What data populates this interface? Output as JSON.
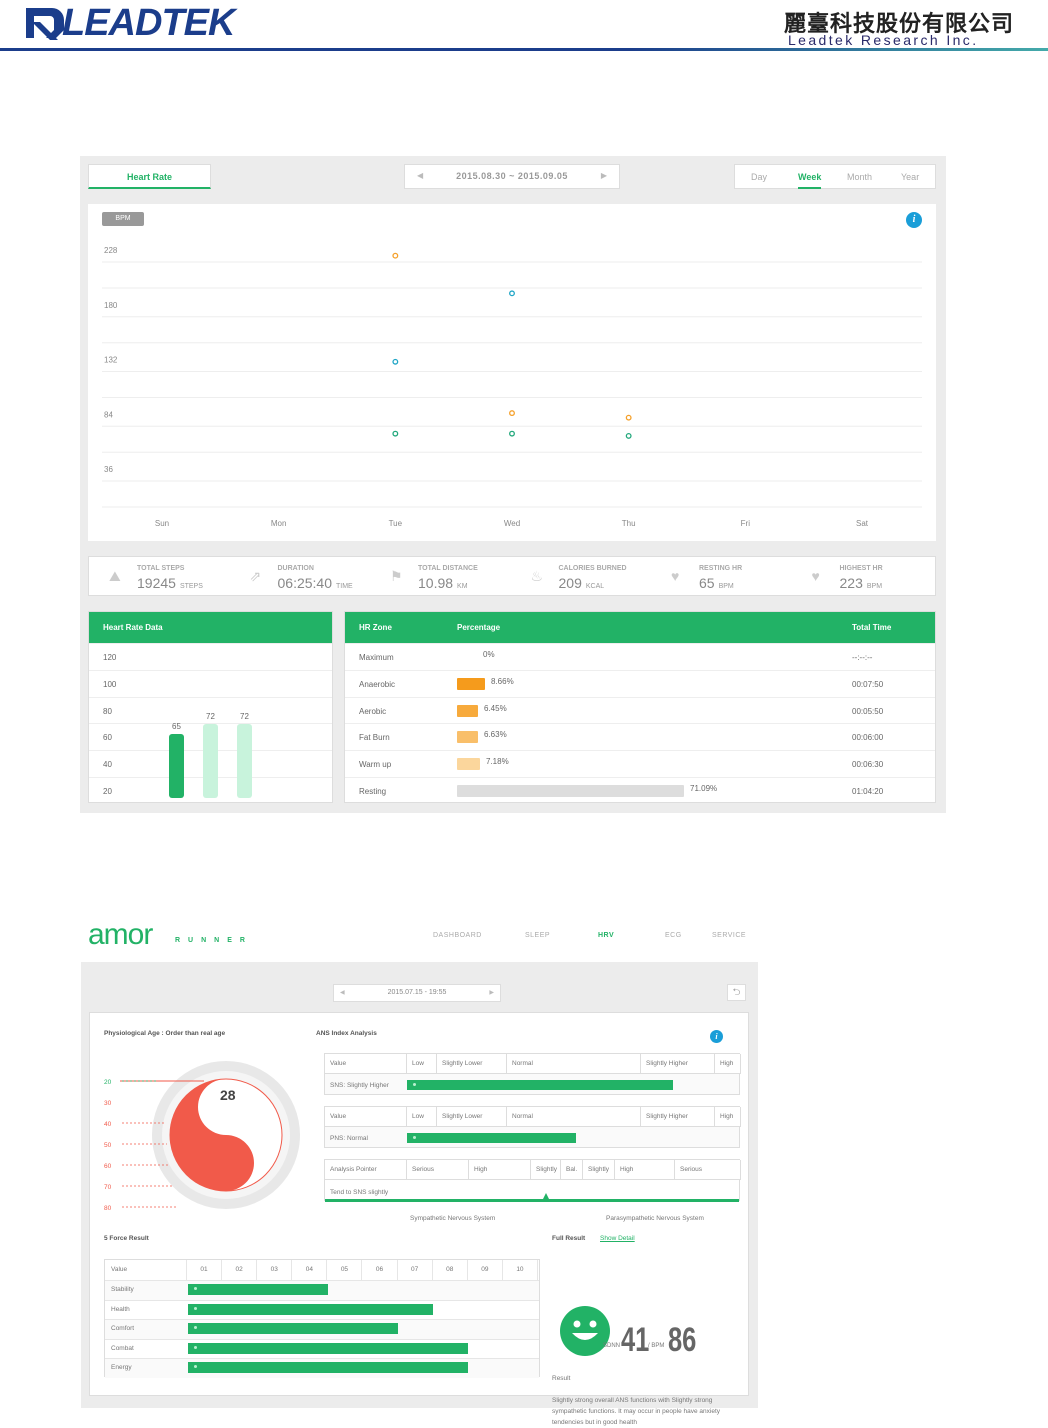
{
  "header": {
    "brand": "LEADTEK",
    "company_cn": "麗臺科技股份有限公司",
    "company_en": "Leadtek Research Inc."
  },
  "screen1": {
    "tab": "Heart Rate",
    "date_range": "2015.08.30 ~ 2015.09.05",
    "periods": [
      "Day",
      "Week",
      "Month",
      "Year"
    ],
    "active_period": "Week",
    "unit_badge": "BPM",
    "chart_data": {
      "type": "scatter",
      "categories": [
        "Sun",
        "Mon",
        "Tue",
        "Wed",
        "Thu",
        "Fri",
        "Sat"
      ],
      "yticks": [
        228,
        180,
        132,
        84,
        36
      ],
      "ylim": [
        36,
        228
      ],
      "series": [
        {
          "color": "#f5a02a",
          "points": [
            {
              "x": "Tue",
              "y": 223
            },
            {
              "x": "Wed",
              "y": 85
            },
            {
              "x": "Thu",
              "y": 81
            }
          ]
        },
        {
          "color": "#1fa5c6",
          "points": [
            {
              "x": "Wed",
              "y": 190
            },
            {
              "x": "Tue",
              "y": 130
            }
          ]
        },
        {
          "color": "#22a87c",
          "points": [
            {
              "x": "Tue",
              "y": 67
            },
            {
              "x": "Wed",
              "y": 67
            },
            {
              "x": "Thu",
              "y": 65
            }
          ]
        }
      ]
    },
    "stats": [
      {
        "label": "TOTAL STEPS",
        "value": "19245",
        "unit": "STEPS",
        "icon": "steps-icon"
      },
      {
        "label": "DURATION",
        "value": "06:25:40",
        "unit": "TIME",
        "icon": "duration-icon"
      },
      {
        "label": "TOTAL DISTANCE",
        "value": "10.98",
        "unit": "KM",
        "icon": "flag-icon"
      },
      {
        "label": "CALORIES BURNED",
        "value": "209",
        "unit": "KCAL",
        "icon": "flame-icon"
      },
      {
        "label": "RESTING HR",
        "value": "65",
        "unit": "BPM",
        "icon": "heart-icon"
      },
      {
        "label": "HIGHEST HR",
        "value": "223",
        "unit": "BPM",
        "icon": "heart-max-icon"
      }
    ],
    "hr_data": {
      "title": "Heart Rate Data",
      "yticks": [
        "120",
        "100",
        "80",
        "60",
        "40",
        "20"
      ],
      "bars": [
        {
          "value": 65,
          "label": "65",
          "color": "#22b266"
        },
        {
          "value": 72,
          "label": "72",
          "color": "#c8f3dc"
        },
        {
          "value": 72,
          "label": "72",
          "color": "#c8f3dc"
        }
      ]
    },
    "zones": {
      "headers": [
        "HR Zone",
        "Percentage",
        "Total Time"
      ],
      "rows": [
        {
          "zone": "Maximum",
          "pct": "0%",
          "fraction": 0,
          "color": "#f59b1c",
          "time": "--:--:--"
        },
        {
          "zone": "Anaerobic",
          "pct": "8.66%",
          "fraction": 0.0866,
          "color": "#f59b1c",
          "time": "00:07:50"
        },
        {
          "zone": "Aerobic",
          "pct": "6.45%",
          "fraction": 0.0645,
          "color": "#f7aa3c",
          "time": "00:05:50"
        },
        {
          "zone": "Fat Burn",
          "pct": "6.63%",
          "fraction": 0.0663,
          "color": "#f9bf6a",
          "time": "00:06:00"
        },
        {
          "zone": "Warm up",
          "pct": "7.18%",
          "fraction": 0.0718,
          "color": "#fbd69c",
          "time": "00:06:30"
        },
        {
          "zone": "Resting",
          "pct": "71.09%",
          "fraction": 0.7109,
          "color": "#dddddd",
          "time": "01:04:20"
        }
      ]
    }
  },
  "screen2": {
    "logo": "amor",
    "logo_sub": "RUNNER",
    "nav": [
      "DASHBOARD",
      "SLEEP",
      "HRV",
      "ECG",
      "SERVICE"
    ],
    "active_nav": "HRV",
    "date": "2015.07.15 - 19:55",
    "phys_title": "Physiological Age : Order than real age",
    "age_scale": [
      "20",
      "30",
      "40",
      "50",
      "60",
      "70",
      "80"
    ],
    "age_value": "28",
    "ans_title": "ANS Index Analysis",
    "ans_header": [
      "Value",
      "Low",
      "Slightly Lower",
      "Normal",
      "Slightly Higher",
      "High"
    ],
    "sns_label": "SNS: Slightly Higher",
    "sns_level": 0.88,
    "pns_label": "PNS: Normal",
    "pns_level": 0.56,
    "pointer_header": [
      "Analysis Pointer",
      "Serious",
      "High",
      "Slightly",
      "Bal.",
      "Slightly",
      "High",
      "Serious"
    ],
    "pointer_label": "Tend to SNS slightly",
    "axis_left": "Sympathetic Nervous System",
    "axis_right": "Parasympathetic Nervous System",
    "force_title": "5 Force Result",
    "force_cols": [
      "Value",
      "01",
      "02",
      "03",
      "04",
      "05",
      "06",
      "07",
      "08",
      "09",
      "10"
    ],
    "forces": [
      {
        "name": "Stability",
        "value": 4
      },
      {
        "name": "Health",
        "value": 7
      },
      {
        "name": "Comfort",
        "value": 6
      },
      {
        "name": "Combat",
        "value": 8
      },
      {
        "name": "Energy",
        "value": 8
      }
    ],
    "full_result": "Full Result",
    "show_detail": "Show Detail",
    "sdnn_label": "SDNN",
    "sdnn": "41",
    "bpm_label": "/ BPM",
    "bpm": "86",
    "result_label": "Result",
    "result_text": "Slightly strong overall ANS functions with Slightly strong sympathetic functions. It may occur in people have anxiety tendencies but in good health"
  }
}
